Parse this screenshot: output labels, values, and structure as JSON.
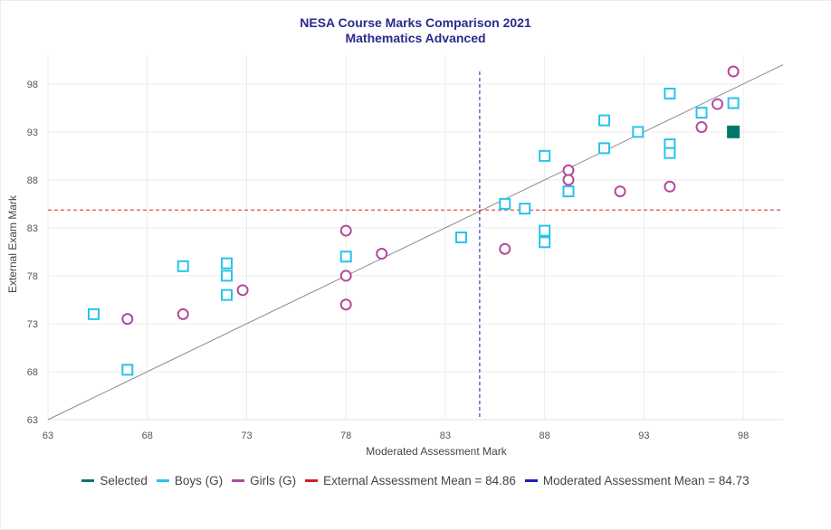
{
  "chart_data": {
    "type": "scatter",
    "title": "NESA Course Marks Comparison 2021",
    "subtitle": "Mathematics Advanced",
    "xlabel": "Moderated Assessment Mark",
    "ylabel": "External Exam Mark",
    "xlim": [
      63,
      100
    ],
    "ylim": [
      63,
      101
    ],
    "xticks": [
      63,
      68,
      73,
      78,
      83,
      88,
      93,
      98
    ],
    "yticks": [
      63,
      68,
      73,
      78,
      83,
      88,
      93,
      98
    ],
    "grid": true,
    "legend_position": "bottom",
    "series": [
      {
        "name": "Selected",
        "marker": "filled-square",
        "color": "#00796b",
        "points": [
          [
            97.5,
            93
          ]
        ]
      },
      {
        "name": "Boys (G)",
        "marker": "square",
        "color": "#29c3ec",
        "points": [
          [
            65.3,
            74
          ],
          [
            67,
            68.2
          ],
          [
            69.8,
            79
          ],
          [
            72,
            79.3
          ],
          [
            72,
            78
          ],
          [
            72,
            76
          ],
          [
            78,
            80
          ],
          [
            83.8,
            82
          ],
          [
            86,
            85.5
          ],
          [
            87,
            85
          ],
          [
            88,
            90.5
          ],
          [
            88,
            82.7
          ],
          [
            88,
            81.5
          ],
          [
            89.2,
            86.8
          ],
          [
            91,
            94.2
          ],
          [
            91,
            91.3
          ],
          [
            92.7,
            93
          ],
          [
            94.3,
            97
          ],
          [
            94.3,
            91.7
          ],
          [
            94.3,
            90.8
          ],
          [
            95.9,
            95
          ],
          [
            97.5,
            96
          ]
        ]
      },
      {
        "name": "Girls (G)",
        "marker": "circle",
        "color": "#b5499b",
        "points": [
          [
            67,
            73.5
          ],
          [
            69.8,
            74
          ],
          [
            72.8,
            76.5
          ],
          [
            78,
            82.7
          ],
          [
            78,
            78
          ],
          [
            78,
            75
          ],
          [
            79.8,
            80.3
          ],
          [
            86,
            80.8
          ],
          [
            89.2,
            89
          ],
          [
            89.2,
            88
          ],
          [
            91.8,
            86.8
          ],
          [
            94.3,
            87.3
          ],
          [
            95.9,
            93.5
          ],
          [
            96.7,
            95.9
          ],
          [
            97.5,
            99.3
          ]
        ]
      }
    ],
    "reference_lines": [
      {
        "name": "External Assessment Mean = 84.86",
        "orientation": "horizontal",
        "value": 84.86,
        "color": "#e23b3b",
        "style": "dashed"
      },
      {
        "name": "Moderated Assessment Mean = 84.73",
        "orientation": "vertical",
        "value": 84.73,
        "color": "#3d3dcc",
        "style": "dashed"
      }
    ],
    "diagonal": {
      "from": [
        63,
        63
      ],
      "to": [
        100,
        100
      ],
      "color": "#888888"
    }
  },
  "legend": {
    "items": [
      {
        "label": "Selected",
        "color": "#00796b"
      },
      {
        "label": "Boys (G)",
        "color": "#29c3ec"
      },
      {
        "label": "Girls (G)",
        "color": "#b5499b"
      },
      {
        "label": "External Assessment Mean = 84.86",
        "color": "#d62020"
      },
      {
        "label": "Moderated Assessment Mean = 84.73",
        "color": "#1c1cc8"
      }
    ]
  }
}
